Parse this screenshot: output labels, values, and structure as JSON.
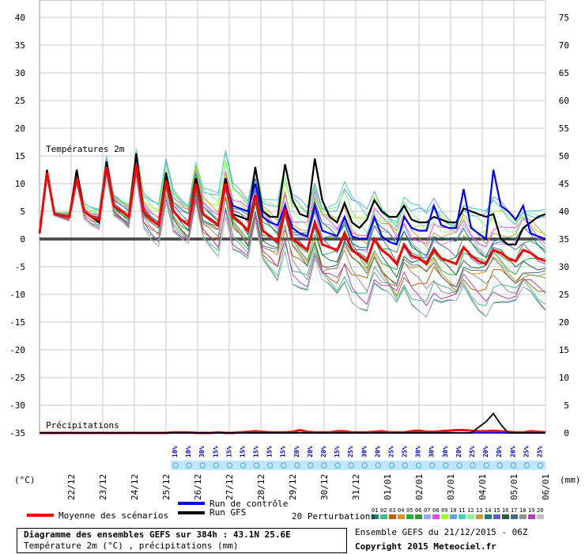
{
  "chart_data": {
    "type": "line",
    "title": "Diagramme des ensembles GEFS sur 384h : 43.1N 25.6E",
    "subtitle": "Température 2m (°C) , précipitations (mm)",
    "temp_label": "Températures 2m",
    "precip_label": "Précipitations",
    "left_unit": "(°C)",
    "right_unit": "(mm)",
    "y_left_ticks": [
      40,
      35,
      30,
      25,
      20,
      15,
      10,
      5,
      0,
      -5,
      -10,
      -15,
      -20,
      -25,
      -30,
      -35
    ],
    "y_right_ticks": [
      75,
      70,
      65,
      60,
      55,
      50,
      45,
      40,
      35,
      30,
      25,
      20,
      15,
      10,
      5,
      0
    ],
    "ylim": [
      -35,
      40
    ],
    "x_labels": [
      "22/12",
      "23/12",
      "24/12",
      "25/12",
      "26/12",
      "27/12",
      "28/12",
      "29/12",
      "30/12",
      "31/12",
      "01/01",
      "02/01",
      "03/01",
      "04/01",
      "05/01",
      "06/01"
    ],
    "x_range": [
      0,
      384
    ],
    "grid": true,
    "percent_labels": [
      "10%",
      "10%",
      "30%",
      "15%",
      "15%",
      "15%",
      "15%",
      "15%",
      "15%",
      "20%",
      "20%",
      "20%",
      "15%",
      "25%",
      "30%",
      "20%",
      "25%",
      "25%",
      "30%",
      "30%",
      "30%",
      "20%",
      "25%",
      "20%",
      "20%",
      "20%",
      "25%",
      "25%"
    ],
    "series": [
      {
        "name": "Moyenne des scénarios",
        "color": "#ff0000",
        "values": [
          1,
          12,
          4.5,
          4.2,
          4,
          11,
          5,
          4,
          3.5,
          13,
          6,
          5,
          4,
          13.5,
          5,
          3.5,
          2.5,
          10.5,
          5,
          3.5,
          2.5,
          10,
          4.5,
          3.5,
          2.5,
          10,
          4,
          3,
          1.5,
          8,
          1.5,
          0.5,
          -0.5,
          5.5,
          0,
          -1,
          -2,
          3,
          -1,
          -1.5,
          -2,
          1,
          -2,
          -3,
          -4,
          0,
          -2,
          -3,
          -4.5,
          -1,
          -3,
          -3.5,
          -4.5,
          -2,
          -3.5,
          -4,
          -4.5,
          -1.5,
          -3,
          -4,
          -4.5,
          -2,
          -2.5,
          -3.5,
          -4,
          -2,
          -2.5,
          -3.5,
          -4
        ]
      },
      {
        "name": "Run de contrôle",
        "color": "#0000ff",
        "values": [
          1,
          12,
          4.5,
          4.2,
          4,
          11,
          5,
          4,
          3.5,
          13,
          6,
          5,
          4,
          13.5,
          5,
          3.5,
          2.5,
          10.5,
          5,
          3.5,
          2.5,
          10,
          4.5,
          3.5,
          2.5,
          10,
          6,
          5.5,
          5,
          10,
          4,
          3,
          2.5,
          6,
          2,
          1,
          0.5,
          6,
          1.5,
          1,
          0.5,
          4,
          0.5,
          0,
          0,
          4,
          0.5,
          -0.5,
          -1,
          4,
          2,
          1.5,
          1.5,
          6,
          2.5,
          2,
          2,
          9,
          2,
          1,
          0,
          12.5,
          6,
          5,
          3.5,
          6,
          1,
          0.5,
          0
        ]
      },
      {
        "name": "Run GFS",
        "color": "#000000",
        "values": [
          1,
          12.5,
          4.5,
          4.2,
          4,
          12.5,
          5,
          4,
          3,
          14,
          6,
          5,
          4,
          15.5,
          5,
          3.5,
          2.5,
          12,
          5,
          3.5,
          2.5,
          11,
          4.5,
          3.5,
          2.5,
          11,
          4.5,
          4,
          3.5,
          13,
          5,
          4,
          4,
          13.5,
          7,
          4.5,
          4,
          14.5,
          7,
          4,
          3,
          6.5,
          3,
          2,
          3.5,
          7,
          5,
          4,
          4,
          6,
          3.5,
          3,
          3,
          4,
          3.5,
          3,
          3,
          5.5,
          5,
          4.5,
          4,
          4.5,
          0,
          -1,
          -1,
          2,
          3,
          4,
          4.5
        ]
      }
    ],
    "precip_series": [
      {
        "name": "Moyenne des scénarios",
        "color": "#ff0000",
        "values": [
          0,
          0,
          0,
          0,
          0,
          0,
          0,
          0,
          0,
          0,
          0,
          0,
          0,
          0,
          0,
          0,
          0,
          0,
          0.1,
          0.1,
          0.1,
          0,
          0,
          0,
          0.1,
          0,
          0,
          0.1,
          0.2,
          0.3,
          0.2,
          0.1,
          0.1,
          0.1,
          0.2,
          0.5,
          0.2,
          0.1,
          0.1,
          0.1,
          0.3,
          0.3,
          0.1,
          0.1,
          0.1,
          0.2,
          0.3,
          0.1,
          0.1,
          0.1,
          0.3,
          0.4,
          0.2,
          0.2,
          0.3,
          0.4,
          0.5,
          0.5,
          0.4,
          0.3,
          0.3,
          0.4,
          0.3,
          0.2,
          0.1,
          0.1,
          0.3,
          0.2,
          0.1
        ]
      },
      {
        "name": "Run de contrôle",
        "color": "#0000ff",
        "values": [
          0,
          0,
          0,
          0,
          0,
          0,
          0,
          0,
          0,
          0,
          0,
          0,
          0,
          0,
          0,
          0,
          0,
          0,
          0,
          0,
          0,
          0,
          0,
          0,
          0,
          0,
          0,
          0,
          0,
          0,
          0,
          0,
          0,
          0,
          0,
          0,
          0,
          0,
          0,
          0,
          0,
          0,
          0,
          0,
          0,
          0,
          0,
          0,
          0,
          0,
          0,
          0,
          0,
          0,
          0,
          0,
          0,
          0,
          0,
          0,
          0,
          0,
          0,
          0,
          0,
          0,
          0,
          0,
          0
        ]
      },
      {
        "name": "Run GFS",
        "color": "#000000",
        "values": [
          0,
          0,
          0,
          0,
          0,
          0,
          0,
          0,
          0,
          0,
          0,
          0,
          0,
          0,
          0,
          0,
          0,
          0,
          0,
          0,
          0,
          0,
          0,
          0,
          0,
          0,
          0,
          0,
          0,
          0,
          0,
          0,
          0,
          0,
          0,
          0,
          0,
          0,
          0,
          0,
          0,
          0,
          0,
          0,
          0,
          0,
          0,
          0,
          0,
          0,
          0,
          0,
          0,
          0,
          0,
          0,
          0,
          0,
          0,
          1,
          2,
          3.5,
          1.5,
          0,
          0,
          0,
          0,
          0,
          0
        ]
      }
    ],
    "perturbations": {
      "count_label": "20 Perturbations",
      "codes": [
        "01",
        "02",
        "03",
        "04",
        "05",
        "06",
        "07",
        "08",
        "09",
        "10",
        "11",
        "12",
        "13",
        "14",
        "15",
        "16",
        "17",
        "18",
        "19",
        "20"
      ],
      "colors": [
        "#208080",
        "#40c080",
        "#c06010",
        "#e09020",
        "#20b040",
        "#309830",
        "#a0a0ff",
        "#ff40ff",
        "#a0ff20",
        "#60a0ff",
        "#40d0c0",
        "#80ff80",
        "#c0a040",
        "#108080",
        "#6060c0",
        "#206040",
        "#407080",
        "#909090",
        "#b040b0",
        "#c0c0c0"
      ]
    }
  },
  "legend": {
    "mean_label": "Moyenne des scénarios",
    "control_label": "Run de contrôle",
    "gfs_label": "Run GFS"
  },
  "footer": {
    "ensemble_label": "Ensemble GEFS du 21/12/2015 - 06Z",
    "copyright": "Copyright 2015 Meteociel.fr"
  }
}
